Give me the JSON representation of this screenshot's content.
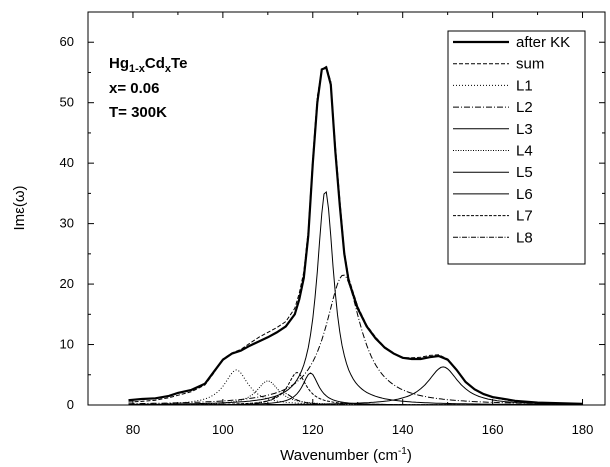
{
  "chart_data": {
    "type": "line",
    "xlabel": "Wavenumber (cm⁻¹)",
    "ylabel": "Imε(ω)",
    "xlim": [
      70,
      185
    ],
    "ylim": [
      0,
      65
    ],
    "xticks": [
      80,
      100,
      120,
      140,
      160,
      180
    ],
    "yticks": [
      0,
      10,
      20,
      30,
      40,
      50,
      60
    ],
    "grid": false,
    "legend_position": "top-right",
    "annotations": [
      {
        "text": "Hg",
        "sub": "1-x",
        "text2": "Cd",
        "sub2": "x",
        "text3": "Te"
      },
      {
        "text": "x= 0.06"
      },
      {
        "text": "T= 300K"
      }
    ],
    "series": [
      {
        "name": "after KK",
        "dash": "",
        "width": 2.2,
        "x": [
          79,
          82,
          85,
          88,
          90,
          93,
          96,
          98,
          100,
          102,
          104,
          106,
          108,
          110,
          112,
          114,
          116,
          117,
          118,
          119,
          120,
          121,
          122,
          123,
          124,
          125,
          126,
          127,
          128,
          130,
          132,
          134,
          136,
          138,
          140,
          142,
          144,
          146,
          148,
          150,
          152,
          154,
          156,
          158,
          160,
          165,
          170,
          175,
          180
        ],
        "y": [
          0.8,
          1.0,
          1.1,
          1.5,
          2.0,
          2.5,
          3.5,
          5.5,
          7.5,
          8.5,
          9.0,
          9.8,
          10.5,
          11.2,
          12.0,
          13.0,
          15.0,
          17.5,
          21.0,
          28.0,
          40.0,
          50.0,
          55.5,
          55.8,
          53.0,
          42.0,
          33.0,
          25.0,
          20.5,
          16.0,
          13.0,
          11.0,
          9.5,
          8.5,
          7.8,
          7.6,
          7.6,
          7.9,
          8.1,
          7.5,
          5.8,
          3.8,
          2.6,
          1.8,
          1.3,
          0.7,
          0.4,
          0.3,
          0.2
        ]
      },
      {
        "name": "sum",
        "dash": "4,2",
        "width": 1,
        "x": [
          79,
          82,
          85,
          88,
          90,
          93,
          96,
          98,
          100,
          102,
          104,
          106,
          108,
          110,
          112,
          114,
          116,
          117,
          118,
          119,
          120,
          121,
          122,
          123,
          124,
          125,
          126,
          127,
          128,
          130,
          132,
          134,
          136,
          138,
          140,
          142,
          144,
          146,
          148,
          150,
          152,
          154,
          156,
          158,
          160,
          165,
          170,
          175,
          180
        ],
        "y": [
          0.5,
          0.6,
          0.8,
          1.2,
          1.6,
          2.2,
          3.3,
          5.3,
          7.6,
          8.6,
          9.2,
          10.2,
          11.2,
          12.0,
          12.8,
          13.8,
          16.0,
          18.5,
          22.0,
          29.0,
          41.0,
          51.0,
          55.5,
          56.0,
          53.5,
          43.0,
          34.0,
          25.5,
          21.0,
          16.3,
          13.2,
          11.2,
          9.6,
          8.6,
          7.8,
          7.8,
          7.9,
          8.2,
          8.3,
          7.6,
          5.9,
          3.9,
          2.6,
          1.8,
          1.2,
          0.6,
          0.3,
          0.2,
          0.1
        ]
      },
      {
        "name": "L1",
        "dash": "1,2",
        "width": 1,
        "center": 103,
        "amp": 5.8,
        "hw": 3.2
      },
      {
        "name": "L2",
        "dash": "6,2,1,2",
        "width": 1,
        "center": 126.8,
        "amp": 21.5,
        "hw": 4.8
      },
      {
        "name": "L3",
        "dash": "",
        "width": 1,
        "center": 122.8,
        "amp": 35.5,
        "hw": 2.3
      },
      {
        "name": "L4",
        "dash": "1,1.5",
        "width": 1,
        "center": 110,
        "amp": 4.0,
        "hw": 3.0
      },
      {
        "name": "L5",
        "dash": "",
        "width": 1,
        "center": 119.5,
        "amp": 5.3,
        "hw": 2.2
      },
      {
        "name": "L6",
        "dash": "",
        "width": 1,
        "center": 149,
        "amp": 6.3,
        "hw": 4.3
      },
      {
        "name": "L7",
        "dash": "3,1.5",
        "width": 1,
        "center": 116.5,
        "amp": 5.4,
        "hw": 2.5
      },
      {
        "name": "L8",
        "dash": "5,1.5,1,1.5",
        "width": 1,
        "center": 113.5,
        "amp": 2.0,
        "hw": 2.5
      }
    ]
  }
}
